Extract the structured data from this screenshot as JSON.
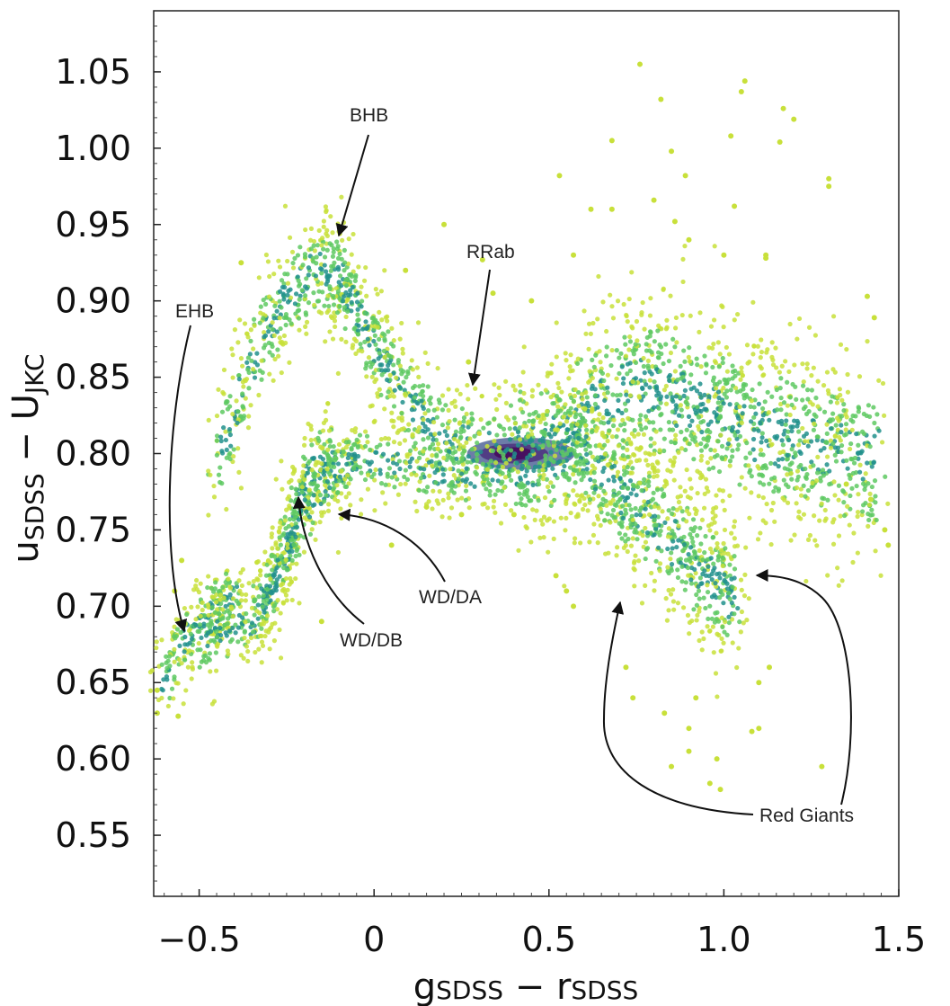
{
  "chart_data": {
    "type": "scatter",
    "title": "",
    "xlabel": {
      "main": "g",
      "sub1": "SDSS",
      "mid": " − r",
      "sub2": "SDSS"
    },
    "ylabel": {
      "main": "u",
      "sub1": "SDSS",
      "mid": " − U",
      "sub2": "JKC"
    },
    "xlim": [
      -0.63,
      1.5
    ],
    "ylim": [
      0.51,
      1.09
    ],
    "x_ticks": [
      {
        "value": -0.5,
        "label": "−0.5"
      },
      {
        "value": 0,
        "label": "0"
      },
      {
        "value": 0.5,
        "label": "0.5"
      },
      {
        "value": 1.0,
        "label": "1.0"
      },
      {
        "value": 1.5,
        "label": "1.5"
      }
    ],
    "y_ticks": [
      {
        "value": 0.55,
        "label": "0.55"
      },
      {
        "value": 0.6,
        "label": "0.60"
      },
      {
        "value": 0.65,
        "label": "0.65"
      },
      {
        "value": 0.7,
        "label": "0.70"
      },
      {
        "value": 0.75,
        "label": "0.75"
      },
      {
        "value": 0.8,
        "label": "0.80"
      },
      {
        "value": 0.85,
        "label": "0.85"
      },
      {
        "value": 0.9,
        "label": "0.90"
      },
      {
        "value": 0.95,
        "label": "0.95"
      },
      {
        "value": 1.0,
        "label": "1.00"
      },
      {
        "value": 1.05,
        "label": "1.05"
      }
    ],
    "colormap": [
      "#440154",
      "#3b528b",
      "#21918c",
      "#5ec962",
      "#fde725"
    ],
    "point_color": "#c8e03a",
    "outlier_points": [
      [
        0.76,
        1.055
      ],
      [
        0.82,
        1.032
      ],
      [
        1.06,
        1.044
      ],
      [
        1.05,
        1.037
      ],
      [
        1.17,
        1.026
      ],
      [
        1.2,
        1.019
      ],
      [
        0.68,
        1.005
      ],
      [
        1.02,
        1.008
      ],
      [
        1.16,
        1.004
      ],
      [
        0.85,
        0.998
      ],
      [
        0.53,
        0.982
      ],
      [
        0.89,
        0.982
      ],
      [
        1.3,
        0.98
      ],
      [
        1.3,
        0.975
      ],
      [
        0.68,
        0.96
      ],
      [
        0.8,
        0.966
      ],
      [
        0.86,
        0.952
      ],
      [
        1.03,
        0.962
      ],
      [
        1.0,
        0.93
      ],
      [
        1.12,
        0.93
      ],
      [
        0.2,
        0.95
      ],
      [
        0.31,
        0.927
      ],
      [
        0.34,
        0.905
      ],
      [
        0.09,
        0.92
      ],
      [
        -0.38,
        0.925
      ],
      [
        0.57,
        0.93
      ],
      [
        0.9,
        0.94
      ],
      [
        1.12,
        0.928
      ],
      [
        1.41,
        0.903
      ],
      [
        1.43,
        0.889
      ],
      [
        -0.55,
        0.73
      ],
      [
        -0.57,
        0.71
      ],
      [
        -0.56,
        0.628
      ],
      [
        -0.62,
        0.63
      ],
      [
        -0.62,
        0.645
      ],
      [
        0.52,
        0.72
      ],
      [
        0.57,
        0.7
      ],
      [
        0.55,
        0.71
      ],
      [
        0.85,
        0.595
      ],
      [
        0.96,
        0.584
      ],
      [
        0.99,
        0.58
      ],
      [
        0.9,
        0.62
      ],
      [
        0.92,
        0.64
      ],
      [
        1.08,
        0.618
      ],
      [
        1.1,
        0.62
      ],
      [
        1.28,
        0.595
      ],
      [
        1.1,
        0.65
      ],
      [
        1.13,
        0.66
      ],
      [
        0.72,
        0.66
      ],
      [
        0.74,
        0.64
      ],
      [
        0.9,
        0.605
      ],
      [
        0.83,
        0.63
      ],
      [
        0.98,
        0.6
      ],
      [
        0.4,
        0.76
      ],
      [
        0.25,
        0.76
      ],
      [
        0.15,
        0.765
      ],
      [
        1.46,
        0.75
      ],
      [
        1.47,
        0.74
      ],
      [
        1.42,
        0.77
      ],
      [
        0.05,
        0.74
      ],
      [
        -0.15,
        0.69
      ],
      [
        1.35,
        0.78
      ],
      [
        0.45,
        0.9
      ],
      [
        0.62,
        0.96
      ],
      [
        0.27,
        0.86
      ]
    ],
    "sequences": [
      {
        "name": "BHB",
        "points": [
          [
            -0.45,
            0.79
          ],
          [
            -0.38,
            0.84
          ],
          [
            -0.3,
            0.885
          ],
          [
            -0.22,
            0.912
          ],
          [
            -0.15,
            0.922
          ],
          [
            -0.1,
            0.915
          ],
          [
            -0.05,
            0.895
          ],
          [
            0.0,
            0.87
          ],
          [
            0.05,
            0.85
          ],
          [
            0.12,
            0.828
          ],
          [
            0.2,
            0.812
          ],
          [
            0.3,
            0.803
          ],
          [
            0.4,
            0.799
          ]
        ]
      },
      {
        "name": "RRab",
        "points": [
          [
            0.4,
            0.799
          ],
          [
            0.48,
            0.8
          ],
          [
            0.55,
            0.81
          ],
          [
            0.65,
            0.835
          ],
          [
            0.75,
            0.845
          ],
          [
            0.85,
            0.838
          ],
          [
            0.95,
            0.83
          ],
          [
            1.05,
            0.82
          ],
          [
            1.15,
            0.81
          ],
          [
            1.25,
            0.805
          ],
          [
            1.35,
            0.8
          ],
          [
            1.44,
            0.795
          ]
        ]
      },
      {
        "name": "Red Giants",
        "points": [
          [
            0.55,
            0.81
          ],
          [
            0.62,
            0.795
          ],
          [
            0.7,
            0.775
          ],
          [
            0.78,
            0.758
          ],
          [
            0.85,
            0.743
          ],
          [
            0.92,
            0.728
          ],
          [
            0.98,
            0.715
          ],
          [
            1.03,
            0.705
          ]
        ]
      },
      {
        "name": "EHB",
        "points": [
          [
            -0.6,
            0.648
          ],
          [
            -0.55,
            0.675
          ],
          [
            -0.5,
            0.69
          ],
          [
            -0.45,
            0.7
          ],
          [
            -0.4,
            0.708
          ]
        ]
      },
      {
        "name": "WD/DB",
        "points": [
          [
            -0.5,
            0.675
          ],
          [
            -0.42,
            0.686
          ],
          [
            -0.35,
            0.69
          ],
          [
            -0.3,
            0.71
          ],
          [
            -0.25,
            0.745
          ],
          [
            -0.2,
            0.78
          ],
          [
            -0.15,
            0.795
          ],
          [
            -0.1,
            0.8
          ]
        ]
      },
      {
        "name": "WD/DA",
        "points": [
          [
            -0.3,
            0.705
          ],
          [
            -0.25,
            0.735
          ],
          [
            -0.2,
            0.76
          ],
          [
            -0.12,
            0.785
          ],
          [
            -0.05,
            0.795
          ],
          [
            0.05,
            0.795
          ],
          [
            0.15,
            0.79
          ],
          [
            0.25,
            0.785
          ],
          [
            0.35,
            0.785
          ]
        ]
      }
    ],
    "annotations": [
      {
        "text": "BHB"
      },
      {
        "text": "RRab"
      },
      {
        "text": "EHB"
      },
      {
        "text": "WD/DB"
      },
      {
        "text": "WD/DA"
      },
      {
        "text": "Red Giants"
      }
    ],
    "grid": false,
    "legend": "none"
  }
}
